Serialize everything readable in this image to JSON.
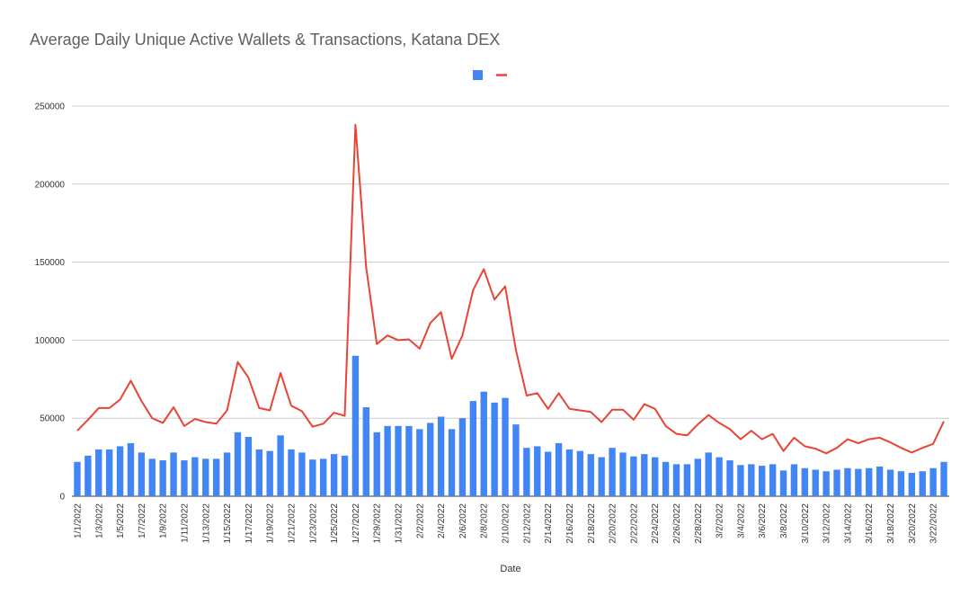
{
  "chart_data": {
    "type": "bar",
    "title": "Average Daily Unique Active Wallets & Transactions, Katana DEX",
    "xlabel": "Date",
    "ylabel": "",
    "ylim": [
      0,
      250000
    ],
    "yticks": [
      0,
      50000,
      100000,
      150000,
      200000,
      250000
    ],
    "grid": true,
    "legend_position": "top-center",
    "categories": [
      "1/1/2022",
      "1/2/2022",
      "1/3/2022",
      "1/4/2022",
      "1/5/2022",
      "1/6/2022",
      "1/7/2022",
      "1/8/2022",
      "1/9/2022",
      "1/10/2022",
      "1/11/2022",
      "1/12/2022",
      "1/13/2022",
      "1/14/2022",
      "1/15/2022",
      "1/16/2022",
      "1/17/2022",
      "1/18/2022",
      "1/19/2022",
      "1/20/2022",
      "1/21/2022",
      "1/22/2022",
      "1/23/2022",
      "1/24/2022",
      "1/25/2022",
      "1/26/2022",
      "1/27/2022",
      "1/28/2022",
      "1/29/2022",
      "1/30/2022",
      "1/31/2022",
      "2/1/2022",
      "2/2/2022",
      "2/3/2022",
      "2/4/2022",
      "2/5/2022",
      "2/6/2022",
      "2/7/2022",
      "2/8/2022",
      "2/9/2022",
      "2/10/2022",
      "2/11/2022",
      "2/12/2022",
      "2/13/2022",
      "2/14/2022",
      "2/15/2022",
      "2/16/2022",
      "2/17/2022",
      "2/18/2022",
      "2/19/2022",
      "2/20/2022",
      "2/21/2022",
      "2/22/2022",
      "2/23/2022",
      "2/24/2022",
      "2/25/2022",
      "2/26/2022",
      "2/27/2022",
      "2/28/2022",
      "3/1/2022",
      "3/2/2022",
      "3/3/2022",
      "3/4/2022",
      "3/5/2022",
      "3/6/2022",
      "3/7/2022",
      "3/8/2022",
      "3/9/2022",
      "3/10/2022",
      "3/11/2022",
      "3/12/2022",
      "3/13/2022",
      "3/14/2022",
      "3/15/2022",
      "3/16/2022",
      "3/17/2022",
      "3/18/2022",
      "3/19/2022",
      "3/20/2022",
      "3/21/2022",
      "3/22/2022",
      "3/23/2022"
    ],
    "tick_labels": [
      "1/1/2022",
      "1/3/2022",
      "1/5/2022",
      "1/7/2022",
      "1/9/2022",
      "1/11/2022",
      "1/13/2022",
      "1/15/2022",
      "1/17/2022",
      "1/19/2022",
      "1/21/2022",
      "1/23/2022",
      "1/25/2022",
      "1/27/2022",
      "1/29/2022",
      "1/31/2022",
      "2/2/2022",
      "2/4/2022",
      "2/6/2022",
      "2/8/2022",
      "2/10/2022",
      "2/12/2022",
      "2/14/2022",
      "2/16/2022",
      "2/18/2022",
      "2/20/2022",
      "2/22/2022",
      "2/24/2022",
      "2/26/2022",
      "2/28/2022",
      "3/2/2022",
      "3/4/2022",
      "3/6/2022",
      "3/8/2022",
      "3/10/2022",
      "3/12/2022",
      "3/14/2022",
      "3/16/2022",
      "3/18/2022",
      "3/20/2022",
      "3/22/2022"
    ],
    "series": [
      {
        "type": "bar",
        "color": "#4285f4",
        "values": [
          22000,
          26000,
          30000,
          30000,
          32000,
          34000,
          28000,
          24000,
          23000,
          28000,
          23000,
          25000,
          24000,
          24000,
          28000,
          41000,
          38000,
          30000,
          29000,
          39000,
          30000,
          28000,
          23500,
          24000,
          27000,
          26000,
          90000,
          57000,
          41000,
          45000,
          45000,
          45000,
          43000,
          47000,
          51000,
          43000,
          50000,
          61000,
          67000,
          60000,
          63000,
          46000,
          31000,
          32000,
          28500,
          34000,
          30000,
          29000,
          27000,
          25000,
          31000,
          28000,
          25500,
          27000,
          25000,
          22000,
          20500,
          20500,
          24000,
          28000,
          25000,
          23000,
          20000,
          20500,
          19500,
          20500,
          16500,
          20500,
          18000,
          17000,
          16000,
          17000,
          18000,
          17500,
          18000,
          19000,
          17000,
          16000,
          15000,
          16000,
          18000,
          22000
        ]
      },
      {
        "type": "line",
        "color": "#ea4335",
        "values": [
          42000,
          49000,
          56500,
          56500,
          62000,
          74000,
          61000,
          50000,
          47000,
          57000,
          45000,
          49500,
          47500,
          46500,
          55000,
          86000,
          76000,
          56500,
          55000,
          79000,
          58000,
          54500,
          44500,
          46500,
          53500,
          51500,
          238000,
          147000,
          97500,
          103000,
          100000,
          100500,
          94500,
          111000,
          118000,
          88000,
          103000,
          132000,
          145500,
          126000,
          134500,
          93500,
          64500,
          66000,
          56000,
          66000,
          56000,
          55000,
          54000,
          47500,
          55500,
          55500,
          49000,
          59000,
          56000,
          45000,
          40000,
          39000,
          46000,
          52000,
          47000,
          43000,
          36500,
          42000,
          36500,
          40000,
          29000,
          37500,
          32000,
          30500,
          27500,
          31000,
          36500,
          34000,
          36500,
          37500,
          34500,
          31000,
          28000,
          31000,
          33500,
          48000
        ]
      }
    ]
  }
}
